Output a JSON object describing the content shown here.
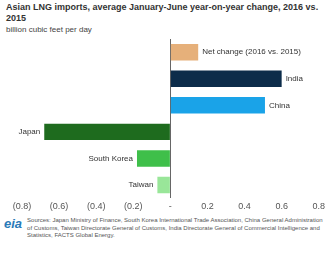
{
  "chart_data": {
    "type": "bar",
    "orientation": "horizontal",
    "title": "Asian LNG imports, average January-June year-on-year change, 2016 vs. 2015",
    "subtitle": "billion cubic feet per day",
    "categories": [
      "Net change (2016 vs. 2015)",
      "India",
      "China",
      "Japan",
      "South Korea",
      "Taiwan"
    ],
    "values": [
      0.15,
      0.6,
      0.51,
      -0.68,
      -0.18,
      -0.07
    ],
    "colors": [
      "#e6b07a",
      "#0c2c4a",
      "#1aa3e8",
      "#1e6b1e",
      "#3fbf4a",
      "#99e699"
    ],
    "xlim": [
      -0.8,
      0.8
    ],
    "xticks": [
      {
        "value": -0.8,
        "label": "(0.8)"
      },
      {
        "value": -0.6,
        "label": "(0.6)"
      },
      {
        "value": -0.4,
        "label": "(0.4)"
      },
      {
        "value": -0.2,
        "label": "(0.2)"
      },
      {
        "value": 0,
        "label": "-"
      },
      0.2,
      0.4,
      0.6,
      0.8
    ],
    "grid": false,
    "tick_labels": "x",
    "source": "Sources: Japan Ministry of Finance, South Korea International Trade Association, China General Administration of Customs, Taiwan Directorate General of Customs, India Directorate General of Commercial Intelligence and Statistics, FACTS Global Energy.",
    "logo": "eia"
  }
}
